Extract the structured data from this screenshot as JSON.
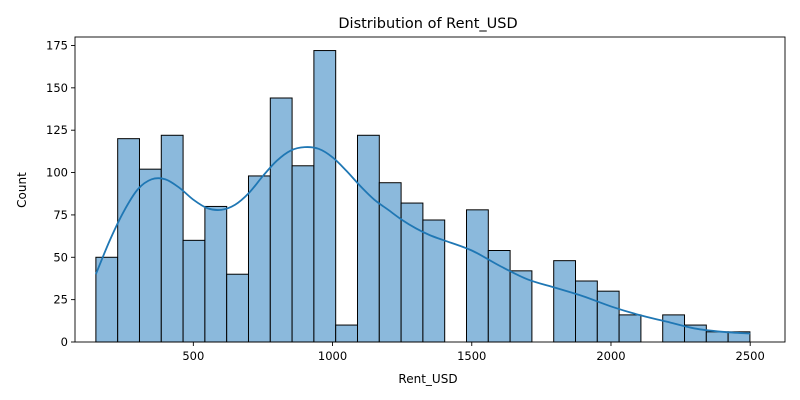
{
  "chart_data": {
    "type": "bar",
    "title": "Distribution of Rent_USD",
    "xlabel": "Rent_USD",
    "ylabel": "Count",
    "xlim": [
      75,
      2625
    ],
    "ylim": [
      0,
      180
    ],
    "xticks": [
      500,
      1000,
      1500,
      2000,
      2500
    ],
    "yticks": [
      0,
      25,
      50,
      75,
      100,
      125,
      150,
      175
    ],
    "bin_start": 150,
    "bin_width": 78.3,
    "counts": [
      50,
      120,
      102,
      122,
      60,
      80,
      40,
      98,
      144,
      104,
      172,
      10,
      122,
      94,
      82,
      72,
      0,
      78,
      54,
      42,
      0,
      48,
      36,
      30,
      16,
      0,
      16,
      10,
      6,
      6
    ],
    "kde": {
      "name": "",
      "color": "#1f77b4",
      "x": [
        150,
        200,
        250,
        300,
        350,
        400,
        450,
        500,
        550,
        600,
        650,
        700,
        750,
        800,
        850,
        900,
        950,
        1000,
        1050,
        1100,
        1150,
        1200,
        1250,
        1300,
        1350,
        1400,
        1500,
        1600,
        1700,
        1800,
        1900,
        2000,
        2100,
        2200,
        2300,
        2400,
        2500
      ],
      "y": [
        40,
        60,
        77,
        90,
        96,
        96,
        91,
        84,
        79,
        78,
        81,
        88,
        98,
        107,
        113,
        115,
        114,
        109,
        101,
        92,
        84,
        78,
        72,
        67,
        63,
        60,
        54,
        45,
        37,
        32,
        27,
        21,
        16,
        12,
        8,
        6,
        5
      ]
    },
    "grid": false,
    "colors": {
      "bar": "#8bb9dc",
      "line": "#1f77b4"
    }
  }
}
